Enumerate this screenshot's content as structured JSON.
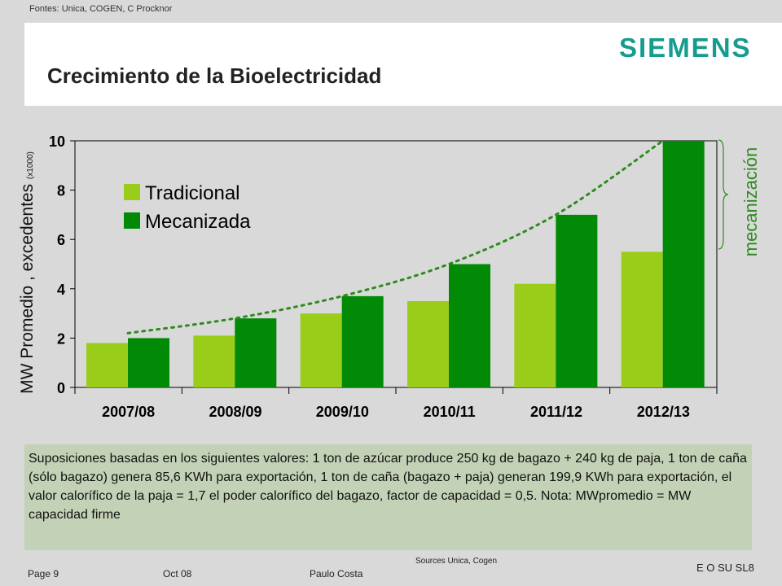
{
  "header": {
    "sources_top": "Fontes: Unica, COGEN, C Procknor",
    "logo": "SIEMENS",
    "title": "Crecimiento de la Bioelectricidad"
  },
  "chart_data": {
    "type": "bar",
    "categories": [
      "2007/08",
      "2008/09",
      "2009/10",
      "2010/11",
      "2011/12",
      "2012/13"
    ],
    "series": [
      {
        "name": "Tradicional",
        "values": [
          1.8,
          2.1,
          3.0,
          3.5,
          4.2,
          5.5
        ],
        "color": "#9acd19"
      },
      {
        "name": "Mecanizada",
        "values": [
          2.0,
          2.8,
          3.7,
          5.0,
          7.0,
          10.0
        ],
        "color": "#008a05"
      }
    ],
    "trend": {
      "style": "dotted",
      "color": "#2e8b1e",
      "values": [
        2.2,
        2.8,
        3.7,
        5.0,
        7.0,
        10.0
      ]
    },
    "ylabel": "MW Promedio , excedentes",
    "ylabel_unit": "(x1000)",
    "ylim": [
      0,
      10
    ],
    "yticks": [
      "0",
      "2",
      "4",
      "6",
      "8",
      "10"
    ],
    "ytick_values": [
      0,
      2,
      4,
      6,
      8,
      10
    ],
    "legend": "top-left",
    "grid": false,
    "annotation": "mecanización"
  },
  "note": "Suposiciones basadas en los siguientes valores: 1 ton de azúcar produce 250 kg de bagazo + 240 kg de paja, 1 ton de caña (sólo bagazo) genera 85,6 KWh para exportación, 1 ton de caña (bagazo + paja) generan 199,9 KWh  para exportación, el valor calorífico de la paja = 1,7 el poder calorífico del bagazo, factor de capacidad  = 0,5. Nota: MWpromedio = MW capacidad firme",
  "footer": {
    "page": "Page 9",
    "date": "Oct 08",
    "author": "Paulo Costa",
    "sources": "Sources Unica, Cogen",
    "code": "E O SU SL8"
  }
}
